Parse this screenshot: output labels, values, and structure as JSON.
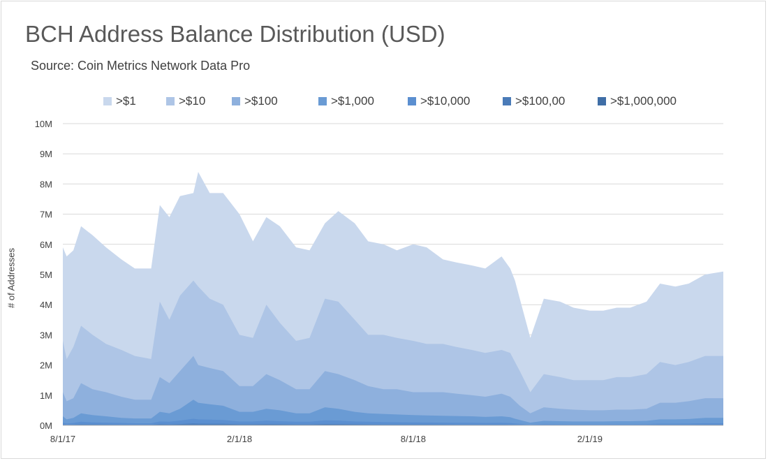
{
  "chart_data": {
    "type": "area",
    "stacked": false,
    "title": "BCH Address Balance Distribution (USD)",
    "subtitle": "Source: Coin Metrics Network Data Pro",
    "xlabel": "",
    "ylabel": "# of Addresses",
    "ylim": [
      0,
      10000000
    ],
    "y_ticks": [
      "0M",
      "1M",
      "2M",
      "3M",
      "4M",
      "5M",
      "6M",
      "7M",
      "8M",
      "9M",
      "10M"
    ],
    "x_tick_labels": [
      "8/1/17",
      "2/1/18",
      "8/1/18",
      "2/1/19"
    ],
    "x_range": [
      "2017-08-01",
      "2019-06-20"
    ],
    "grid": "horizontal",
    "legend_position": "top",
    "x": [
      "2017-08-01",
      "2017-08-05",
      "2017-08-12",
      "2017-08-20",
      "2017-09-01",
      "2017-09-15",
      "2017-10-01",
      "2017-10-15",
      "2017-11-01",
      "2017-11-10",
      "2017-11-20",
      "2017-12-01",
      "2017-12-15",
      "2017-12-20",
      "2018-01-01",
      "2018-01-15",
      "2018-02-01",
      "2018-02-15",
      "2018-03-01",
      "2018-03-15",
      "2018-04-01",
      "2018-04-15",
      "2018-05-01",
      "2018-05-15",
      "2018-06-01",
      "2018-06-15",
      "2018-07-01",
      "2018-07-15",
      "2018-08-01",
      "2018-08-15",
      "2018-09-01",
      "2018-09-15",
      "2018-10-01",
      "2018-10-15",
      "2018-11-01",
      "2018-11-10",
      "2018-11-15",
      "2018-11-20",
      "2018-12-01",
      "2018-12-15",
      "2019-01-01",
      "2019-01-15",
      "2019-02-01",
      "2019-02-15",
      "2019-03-01",
      "2019-03-15",
      "2019-04-01",
      "2019-04-15",
      "2019-05-01",
      "2019-05-15",
      "2019-06-01",
      "2019-06-20"
    ],
    "series": [
      {
        "name": ">$1",
        "color": "#c9d8ed",
        "values": [
          5900000,
          5600000,
          5800000,
          6600000,
          6300000,
          5900000,
          5500000,
          5200000,
          5200000,
          7300000,
          6900000,
          7600000,
          7700000,
          8400000,
          7700000,
          7700000,
          7000000,
          6100000,
          6900000,
          6600000,
          5900000,
          5800000,
          6700000,
          7100000,
          6700000,
          6100000,
          6000000,
          5800000,
          6000000,
          5900000,
          5500000,
          5400000,
          5300000,
          5200000,
          5600000,
          5200000,
          4800000,
          4200000,
          2900000,
          4200000,
          4100000,
          3900000,
          3800000,
          3800000,
          3900000,
          3900000,
          4100000,
          4700000,
          4600000,
          4700000,
          5000000,
          5100000
        ]
      },
      {
        "name": ">$10",
        "color": "#aec5e6",
        "values": [
          2800000,
          2200000,
          2600000,
          3300000,
          3000000,
          2700000,
          2500000,
          2300000,
          2200000,
          4100000,
          3500000,
          4300000,
          4800000,
          4600000,
          4200000,
          4000000,
          3000000,
          2900000,
          4000000,
          3400000,
          2800000,
          2900000,
          4200000,
          4100000,
          3500000,
          3000000,
          3000000,
          2900000,
          2800000,
          2700000,
          2700000,
          2600000,
          2500000,
          2400000,
          2500000,
          2400000,
          2100000,
          1800000,
          1100000,
          1700000,
          1600000,
          1500000,
          1500000,
          1500000,
          1600000,
          1600000,
          1700000,
          2100000,
          2000000,
          2100000,
          2300000,
          2300000
        ]
      },
      {
        "name": ">$100",
        "color": "#8eb0dd",
        "values": [
          1100000,
          800000,
          900000,
          1400000,
          1200000,
          1100000,
          950000,
          850000,
          850000,
          1600000,
          1400000,
          1800000,
          2300000,
          2000000,
          1900000,
          1800000,
          1300000,
          1300000,
          1700000,
          1500000,
          1200000,
          1200000,
          1800000,
          1700000,
          1500000,
          1300000,
          1200000,
          1200000,
          1100000,
          1100000,
          1100000,
          1050000,
          1000000,
          950000,
          1050000,
          950000,
          800000,
          650000,
          400000,
          600000,
          550000,
          520000,
          500000,
          500000,
          520000,
          520000,
          550000,
          750000,
          750000,
          800000,
          900000,
          900000
        ]
      },
      {
        "name": ">$1,000",
        "color": "#6a9bd4",
        "values": [
          300000,
          200000,
          250000,
          400000,
          340000,
          300000,
          250000,
          230000,
          230000,
          450000,
          400000,
          550000,
          850000,
          750000,
          700000,
          650000,
          450000,
          450000,
          550000,
          500000,
          400000,
          400000,
          600000,
          550000,
          450000,
          400000,
          380000,
          360000,
          340000,
          330000,
          320000,
          310000,
          300000,
          280000,
          300000,
          270000,
          220000,
          180000,
          90000,
          150000,
          140000,
          130000,
          130000,
          130000,
          140000,
          140000,
          150000,
          200000,
          200000,
          210000,
          250000,
          250000
        ]
      },
      {
        "name": ">$10,000",
        "color": "#5b8fd0",
        "values": [
          90000,
          60000,
          80000,
          120000,
          100000,
          90000,
          80000,
          70000,
          70000,
          130000,
          120000,
          160000,
          220000,
          200000,
          190000,
          180000,
          130000,
          130000,
          160000,
          140000,
          120000,
          120000,
          170000,
          160000,
          130000,
          120000,
          110000,
          105000,
          100000,
          95000,
          90000,
          88000,
          85000,
          80000,
          85000,
          78000,
          65000,
          52000,
          26000,
          44000,
          40000,
          38000,
          37000,
          37000,
          40000,
          40000,
          43000,
          57000,
          57000,
          60000,
          72000,
          72000
        ]
      },
      {
        "name": ">$100,00",
        "color": "#4a7bb8",
        "values": [
          25000,
          18000,
          22000,
          33000,
          28000,
          25000,
          22000,
          20000,
          20000,
          36000,
          33000,
          44000,
          60000,
          55000,
          52000,
          50000,
          36000,
          36000,
          44000,
          39000,
          33000,
          33000,
          47000,
          44000,
          36000,
          33000,
          30000,
          29000,
          28000,
          27000,
          25000,
          24000,
          23000,
          22000,
          23000,
          21000,
          18000,
          14000,
          7000,
          12000,
          11000,
          10500,
          10000,
          10000,
          11000,
          11000,
          12000,
          16000,
          16000,
          17000,
          20000,
          20000
        ]
      },
      {
        "name": ">$1,000,000",
        "color": "#3f6ea6",
        "values": [
          5000,
          4000,
          4500,
          6500,
          5500,
          5000,
          4500,
          4000,
          4000,
          7000,
          6500,
          8500,
          12000,
          11000,
          10500,
          10000,
          7000,
          7000,
          8500,
          7500,
          6500,
          6500,
          9000,
          8500,
          7000,
          6500,
          6000,
          5800,
          5600,
          5400,
          5000,
          4800,
          4600,
          4400,
          4600,
          4200,
          3600,
          2800,
          1400,
          2400,
          2200,
          2100,
          2000,
          2000,
          2200,
          2200,
          2400,
          3200,
          3200,
          3400,
          4000,
          4000
        ]
      }
    ]
  }
}
